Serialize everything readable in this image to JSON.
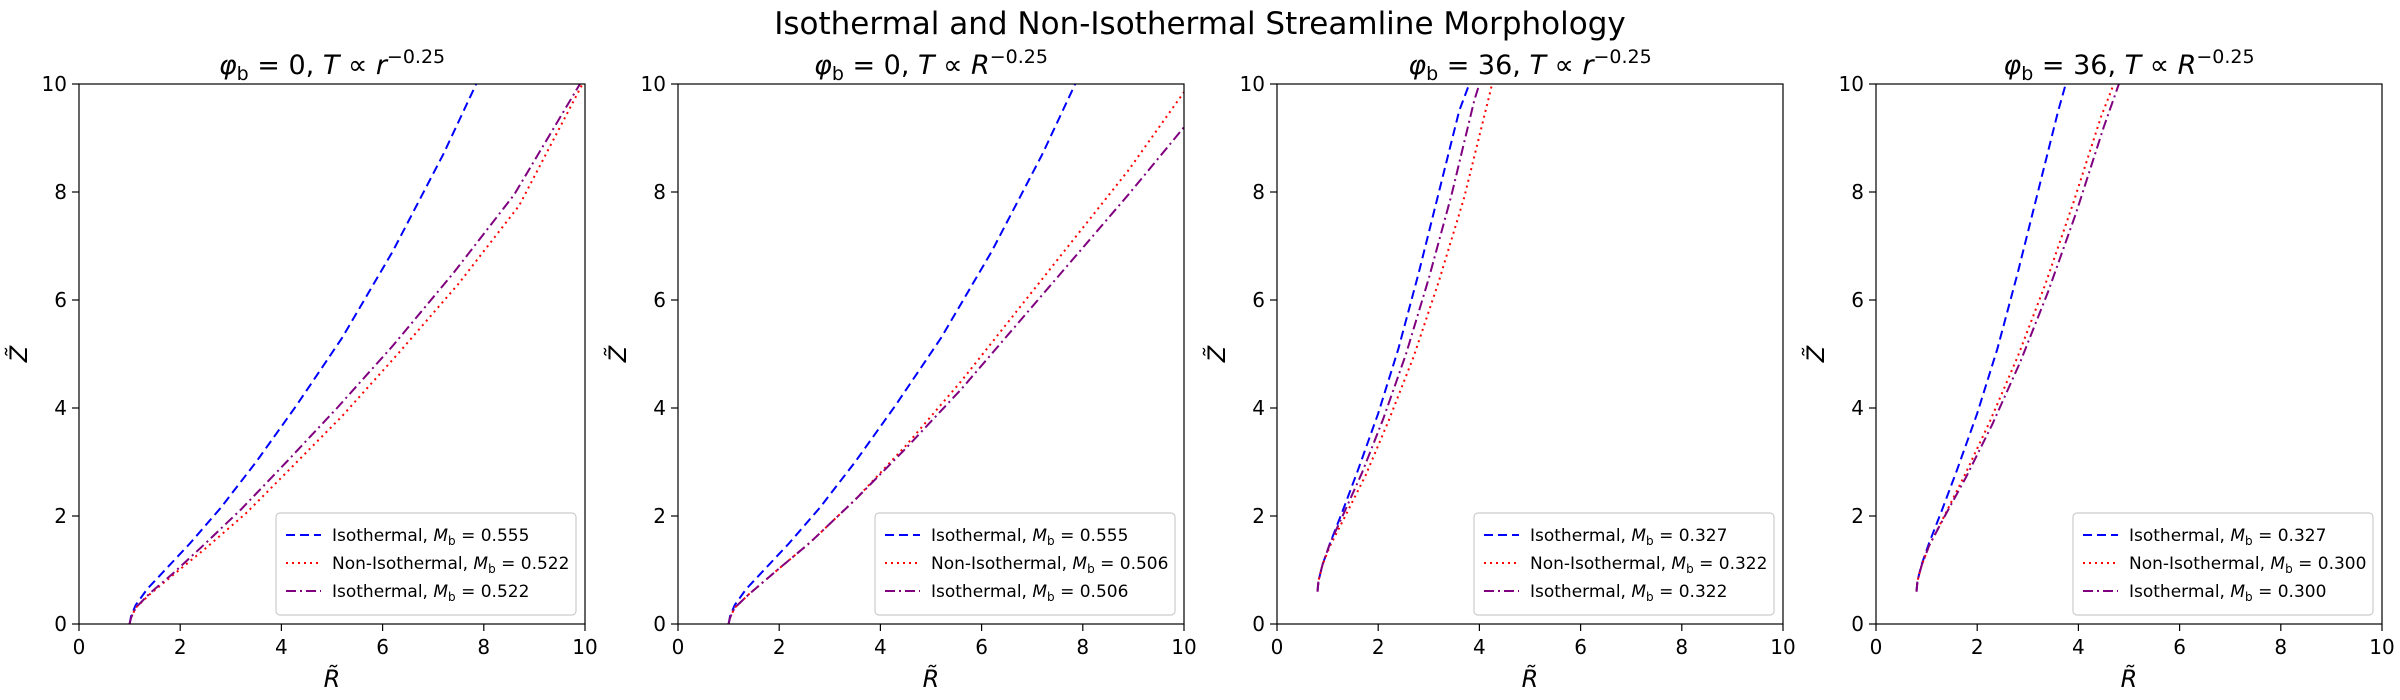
{
  "figure": {
    "title": "Isothermal and Non-Isothermal Streamline Morphology"
  },
  "chart_data": [
    {
      "type": "line",
      "title": "φb = 0, T ∝ r^-0.25",
      "title_parts": {
        "phi_value": "0",
        "var": "r"
      },
      "xlabel": "R̃",
      "ylabel": "Z̃",
      "xlim": [
        0,
        10
      ],
      "ylim": [
        0,
        10
      ],
      "xticks": [
        "0",
        "2",
        "4",
        "6",
        "8",
        "10"
      ],
      "yticks": [
        "0",
        "2",
        "4",
        "6",
        "8",
        "10"
      ],
      "grid": false,
      "legend_position": "lower-right",
      "series": [
        {
          "name": "Isothermal, Mb = 0.555",
          "legend_prefix": "Isothermal, ",
          "m_value": "0.555",
          "color": "#0000ff",
          "style": "dashed",
          "x": [
            1.0,
            1.03,
            1.12,
            1.35,
            1.7,
            2.2,
            2.8,
            3.5,
            4.3,
            5.2,
            6.2,
            7.2,
            7.85
          ],
          "y": [
            0.0,
            0.15,
            0.35,
            0.65,
            1.0,
            1.5,
            2.15,
            3.0,
            4.05,
            5.3,
            6.9,
            8.7,
            10.0
          ]
        },
        {
          "name": "Non-Isothermal, Mb = 0.522",
          "legend_prefix": "Non-Isothermal, ",
          "m_value": "0.522",
          "color": "#ff0000",
          "style": "dotted",
          "x": [
            1.0,
            1.03,
            1.12,
            1.4,
            1.85,
            2.5,
            3.3,
            4.2,
            5.2,
            6.3,
            7.5,
            8.7,
            9.95
          ],
          "y": [
            0.0,
            0.12,
            0.3,
            0.55,
            0.9,
            1.4,
            2.05,
            2.9,
            3.85,
            5.0,
            6.3,
            7.75,
            10.0
          ]
        },
        {
          "name": "Isothermal, Mb = 0.522",
          "legend_prefix": "Isothermal, ",
          "m_value": "0.522",
          "color": "#800080",
          "style": "dashdot",
          "x": [
            1.0,
            1.03,
            1.12,
            1.4,
            1.85,
            2.45,
            3.2,
            4.1,
            5.1,
            6.2,
            7.4,
            8.6,
            9.9
          ],
          "y": [
            0.0,
            0.12,
            0.3,
            0.57,
            0.93,
            1.45,
            2.12,
            3.0,
            4.0,
            5.15,
            6.5,
            7.95,
            10.0
          ]
        }
      ]
    },
    {
      "type": "line",
      "title": "φb = 0, T ∝ R^-0.25",
      "title_parts": {
        "phi_value": "0",
        "var": "R"
      },
      "xlabel": "R̃",
      "ylabel": "Z̃",
      "xlim": [
        0,
        10
      ],
      "ylim": [
        0,
        10
      ],
      "xticks": [
        "0",
        "2",
        "4",
        "6",
        "8",
        "10"
      ],
      "yticks": [
        "0",
        "2",
        "4",
        "6",
        "8",
        "10"
      ],
      "grid": false,
      "legend_position": "lower-right",
      "series": [
        {
          "name": "Isothermal, Mb = 0.555",
          "legend_prefix": "Isothermal, ",
          "m_value": "0.555",
          "color": "#0000ff",
          "style": "dashed",
          "x": [
            1.0,
            1.03,
            1.12,
            1.35,
            1.7,
            2.2,
            2.8,
            3.5,
            4.3,
            5.2,
            6.2,
            7.2,
            7.85
          ],
          "y": [
            0.0,
            0.15,
            0.35,
            0.65,
            1.0,
            1.5,
            2.15,
            3.0,
            4.05,
            5.3,
            6.9,
            8.7,
            10.0
          ]
        },
        {
          "name": "Non-Isothermal, Mb = 0.506",
          "legend_prefix": "Non-Isothermal, ",
          "m_value": "0.506",
          "color": "#ff0000",
          "style": "dotted",
          "x": [
            1.0,
            1.03,
            1.12,
            1.4,
            1.9,
            2.6,
            3.5,
            4.5,
            5.6,
            6.7,
            7.8,
            8.9,
            10.0
          ],
          "y": [
            0.0,
            0.12,
            0.3,
            0.55,
            0.95,
            1.5,
            2.3,
            3.3,
            4.5,
            5.8,
            7.1,
            8.4,
            9.85
          ]
        },
        {
          "name": "Isothermal, Mb = 0.506",
          "legend_prefix": "Isothermal, ",
          "m_value": "0.506",
          "color": "#800080",
          "style": "dashdot",
          "x": [
            1.0,
            1.03,
            1.12,
            1.4,
            1.9,
            2.6,
            3.5,
            4.5,
            5.6,
            6.7,
            7.8,
            8.9,
            10.0
          ],
          "y": [
            0.0,
            0.12,
            0.3,
            0.55,
            0.95,
            1.5,
            2.3,
            3.25,
            4.35,
            5.55,
            6.75,
            7.95,
            9.2
          ]
        }
      ]
    },
    {
      "type": "line",
      "title": "φb = 36, T ∝ r^-0.25",
      "title_parts": {
        "phi_value": "36",
        "var": "r"
      },
      "xlabel": "R̃",
      "ylabel": "Z̃",
      "xlim": [
        0,
        10
      ],
      "ylim": [
        0,
        10
      ],
      "xticks": [
        "0",
        "2",
        "4",
        "6",
        "8",
        "10"
      ],
      "yticks": [
        "0",
        "2",
        "4",
        "6",
        "8",
        "10"
      ],
      "grid": false,
      "legend_position": "lower-right",
      "series": [
        {
          "name": "Isothermal, Mb = 0.327",
          "legend_prefix": "Isothermal, ",
          "m_value": "0.327",
          "color": "#0000ff",
          "style": "dashed",
          "x": [
            0.8,
            0.82,
            0.9,
            1.05,
            1.3,
            1.6,
            2.0,
            2.4,
            2.8,
            3.2,
            3.6,
            3.8
          ],
          "y": [
            0.6,
            0.8,
            1.1,
            1.5,
            2.1,
            2.85,
            3.9,
            5.1,
            6.5,
            8.0,
            9.5,
            10.0
          ]
        },
        {
          "name": "Non-Isothermal, Mb = 0.322",
          "legend_prefix": "Non-Isothermal, ",
          "m_value": "0.322",
          "color": "#ff0000",
          "style": "dotted",
          "x": [
            0.8,
            0.82,
            0.9,
            1.05,
            1.35,
            1.75,
            2.2,
            2.7,
            3.2,
            3.7,
            4.2,
            4.25
          ],
          "y": [
            0.6,
            0.8,
            1.1,
            1.45,
            2.0,
            2.75,
            3.75,
            4.95,
            6.35,
            7.9,
            9.8,
            10.0
          ]
        },
        {
          "name": "Isothermal, Mb = 0.322",
          "legend_prefix": "Isothermal, ",
          "m_value": "0.322",
          "color": "#800080",
          "style": "dashdot",
          "x": [
            0.8,
            0.82,
            0.9,
            1.05,
            1.32,
            1.68,
            2.1,
            2.55,
            3.0,
            3.45,
            3.9,
            4.0
          ],
          "y": [
            0.6,
            0.8,
            1.1,
            1.5,
            2.05,
            2.8,
            3.8,
            5.0,
            6.4,
            7.95,
            9.7,
            10.0
          ]
        }
      ]
    },
    {
      "type": "line",
      "title": "φb = 36, T ∝ R^-0.25",
      "title_parts": {
        "phi_value": "36",
        "var": "R"
      },
      "xlabel": "R̃",
      "ylabel": "Z̃",
      "xlim": [
        0,
        10
      ],
      "ylim": [
        0,
        10
      ],
      "xticks": [
        "0",
        "2",
        "4",
        "6",
        "8",
        "10"
      ],
      "yticks": [
        "0",
        "2",
        "4",
        "6",
        "8",
        "10"
      ],
      "grid": false,
      "legend_position": "lower-right",
      "series": [
        {
          "name": "Isothermal, Mb = 0.327",
          "legend_prefix": "Isothermal, ",
          "m_value": "0.327",
          "color": "#0000ff",
          "style": "dashed",
          "x": [
            0.8,
            0.82,
            0.9,
            1.05,
            1.3,
            1.6,
            2.0,
            2.4,
            2.8,
            3.2,
            3.6,
            3.75
          ],
          "y": [
            0.6,
            0.8,
            1.1,
            1.5,
            2.1,
            2.85,
            3.9,
            5.1,
            6.5,
            8.0,
            9.5,
            10.0
          ]
        },
        {
          "name": "Non-Isothermal, Mb = 0.300",
          "legend_prefix": "Non-Isothermal, ",
          "m_value": "0.300",
          "color": "#ff0000",
          "style": "dotted",
          "x": [
            0.8,
            0.82,
            0.9,
            1.05,
            1.35,
            1.75,
            2.25,
            2.8,
            3.35,
            3.9,
            4.45,
            4.7
          ],
          "y": [
            0.6,
            0.8,
            1.08,
            1.45,
            2.0,
            2.75,
            3.75,
            4.95,
            6.3,
            7.8,
            9.4,
            10.0
          ]
        },
        {
          "name": "Isothermal, Mb = 0.300",
          "legend_prefix": "Isothermal, ",
          "m_value": "0.300",
          "color": "#800080",
          "style": "dashdot",
          "x": [
            0.8,
            0.82,
            0.9,
            1.05,
            1.36,
            1.78,
            2.3,
            2.85,
            3.4,
            3.95,
            4.5,
            4.8
          ],
          "y": [
            0.6,
            0.8,
            1.08,
            1.45,
            2.0,
            2.72,
            3.7,
            4.85,
            6.15,
            7.6,
            9.2,
            10.0
          ]
        }
      ]
    }
  ]
}
